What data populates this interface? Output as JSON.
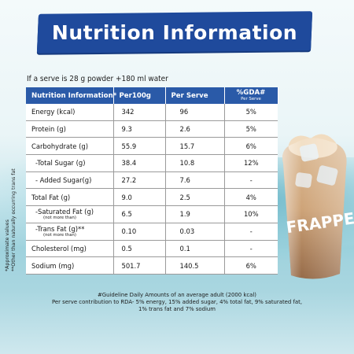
{
  "header": {
    "title": "Nutrition Information"
  },
  "serving_note": "If a serve is 28 g powder +180 ml water",
  "side_notes": {
    "approximate": "*Approximate values",
    "trans_fat": "**Other than naturally occurring trans fat"
  },
  "table": {
    "headers": {
      "nutrient": "Nutrition Information*",
      "per100g": "Per100g",
      "per_serve": "Per Serve",
      "gda": "%GDA#",
      "gda_sub": "Per Serve"
    },
    "rows": [
      {
        "name": "Energy (kcal)",
        "per100g": "342",
        "per_serve": "96",
        "gda": "5%"
      },
      {
        "name": "Protein (g)",
        "per100g": "9.3",
        "per_serve": "2.6",
        "gda": "5%"
      },
      {
        "name": "Carbohydrate (g)",
        "per100g": "55.9",
        "per_serve": "15.7",
        "gda": "6%"
      },
      {
        "name": "-Total Sugar (g)",
        "per100g": "38.4",
        "per_serve": "10.8",
        "gda": "12%"
      },
      {
        "name": "- Added Sugar(g)",
        "per100g": "27.2",
        "per_serve": "7.6",
        "gda": "-"
      },
      {
        "name": "Total Fat (g)",
        "per100g": "9.0",
        "per_serve": "2.5",
        "gda": "4%"
      },
      {
        "name": "-Saturated Fat (g)",
        "sub": "(not more than)",
        "per100g": "6.5",
        "per_serve": "1.9",
        "gda": "10%"
      },
      {
        "name": "-Trans Fat (g)**",
        "sub": "(not more than)",
        "per100g": "0.10",
        "per_serve": "0.03",
        "gda": "-"
      },
      {
        "name": "Cholesterol (mg)",
        "per100g": "0.5",
        "per_serve": "0.1",
        "gda": "-"
      },
      {
        "name": "Sodium (mg)",
        "per100g": "501.7",
        "per_serve": "140.5",
        "gda": "6%"
      }
    ]
  },
  "footnote": {
    "line1": "#Guideline Daily Amounts of an average adult (2000 kcal)",
    "line2": "Per serve contribution to RDA- 5% energy, 15% added sugar, 4% total fat, 9% saturated fat,",
    "line3": "1% trans fat and 7% sodium"
  },
  "product_image": {
    "cup_text": "FRAPPE"
  },
  "colors": {
    "banner": "#1f4a9c",
    "table_header": "#2a5aa8",
    "sea": "#2f9ab3"
  }
}
